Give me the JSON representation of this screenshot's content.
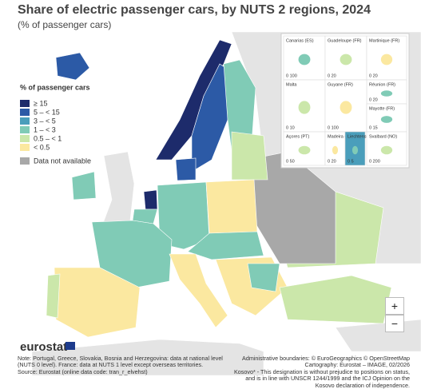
{
  "header": {
    "title": "Share of electric passenger cars, by NUTS 2 regions, 2024",
    "subtitle": "(% of passenger cars)"
  },
  "legend": {
    "title": "% of passenger cars",
    "items": [
      {
        "label": "≥ 15",
        "color": "#1d2b6b"
      },
      {
        "label": "5 – < 15",
        "color": "#2c5aa6"
      },
      {
        "label": "3 – < 5",
        "color": "#4a9ebb"
      },
      {
        "label": "1 – < 3",
        "color": "#80cbb6"
      },
      {
        "label": "0.5 – < 1",
        "color": "#cbe7aa"
      },
      {
        "label": "< 0.5",
        "color": "#fbe8a0"
      },
      {
        "label": "Data not available",
        "color": "#a8a8a8"
      }
    ]
  },
  "insets": [
    {
      "label": "Canarias (ES)",
      "scale": "0 100"
    },
    {
      "label": "Guadeloupe (FR)",
      "scale": "0 20"
    },
    {
      "label": "Martinique (FR)",
      "scale": "0 20"
    },
    {
      "label": "Réunion (FR)",
      "scale": "0 20"
    },
    {
      "label": "Malta",
      "scale": "0 10"
    },
    {
      "label": "Guyane (FR)",
      "scale": "0 100"
    },
    {
      "label": "Mayotte (FR)",
      "scale": "0 15"
    },
    {
      "label": "Açores (PT)",
      "scale": "0 50"
    },
    {
      "label": "Madeira (PT)",
      "scale": "0 20"
    },
    {
      "label": "Liechtenstein",
      "scale": "0 5"
    },
    {
      "label": "Svalbard (NO)",
      "scale": "0 200"
    }
  ],
  "zoom": {
    "in": "+",
    "out": "−"
  },
  "logo": "eurostat",
  "footer": {
    "note": "Note: Portugal, Greece, Slovakia, Bosnia and Herzegovina: data at national level (NUTS 0 level). France: data at NUTS 1 level except overseas territories.",
    "source": "Source: Eurostat (online data code: tran_r_elvehst)",
    "boundaries": "Administrative boundaries: © EuroGeographics © OpenStreetMap",
    "cartography": "Cartography: Eurostat – IMAGE, 02/2026",
    "kosovo": "Kosovo* - This designation is without prejudice to positions on status, and is in line with UNSCR 1244/1999 and the ICJ Opinion on the Kosovo declaration of independence."
  }
}
